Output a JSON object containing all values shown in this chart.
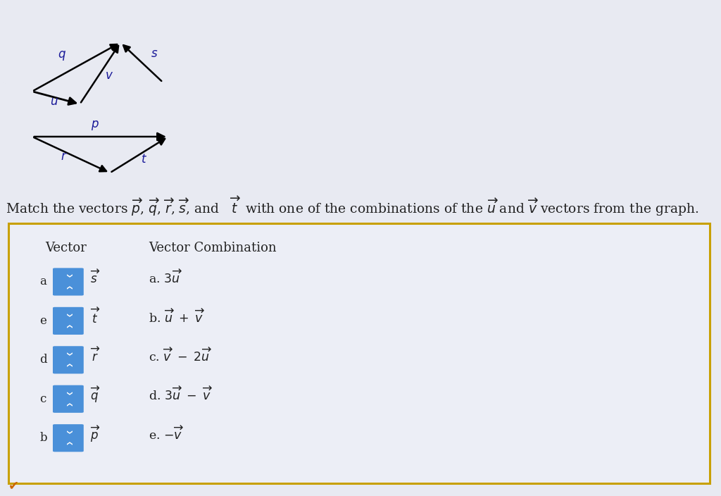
{
  "bg_color": "#e8eaf2",
  "diagram_bg": "#ffffff",
  "box_bg": "#eceef6",
  "vector_label": "Vector",
  "combo_label": "Vector Combination",
  "rows": [
    {
      "letter": "a",
      "vector": "s"
    },
    {
      "letter": "e",
      "vector": "t"
    },
    {
      "letter": "d",
      "vector": "r"
    },
    {
      "letter": "c",
      "vector": "q"
    },
    {
      "letter": "b",
      "vector": "p"
    }
  ],
  "combos": [
    "a. 3u_vec",
    "b. u_vec + v_vec",
    "c. v_vec - 2u_vec",
    "d. 3u_vec - v_vec",
    "e. neg_v_vec"
  ],
  "box_outline_color": "#c8a000",
  "btn_color": "#4a90d9",
  "checkmark_color": "#cc6600",
  "label_color": "#1a1a99",
  "text_color": "#222222"
}
